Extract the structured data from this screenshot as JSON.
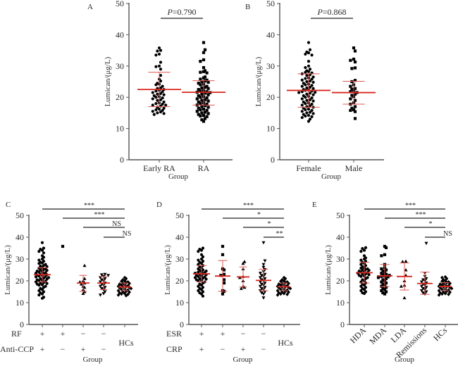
{
  "chart_data": [
    {
      "panel": "A",
      "type": "scatter",
      "title": "",
      "xlabel": "Group",
      "ylabel": "Lumican/(μg/L)",
      "ylim": [
        0,
        50
      ],
      "yticks": [
        0,
        10,
        20,
        30,
        40,
        50
      ],
      "categories": [
        "Early RA",
        "RA"
      ],
      "markers": [
        "circle",
        "square"
      ],
      "series": [
        {
          "name": "Early RA",
          "median": 22.5,
          "err_low": 17.0,
          "err_high": 28.0,
          "values": [
            35.8,
            35.0,
            34.8,
            33.8,
            33.5,
            31.2,
            30.0,
            29.8,
            29.0,
            27.0,
            25.8,
            25.2,
            24.5,
            24.2,
            24.0,
            23.5,
            23.0,
            22.8,
            22.5,
            22.2,
            22.0,
            21.8,
            21.5,
            21.2,
            21.0,
            20.8,
            20.5,
            20.2,
            20.0,
            19.8,
            19.5,
            19.2,
            19.0,
            18.5,
            18.2,
            18.0,
            17.8,
            17.5,
            17.5,
            17.2,
            16.8,
            16.5,
            16.2,
            16.0,
            15.8,
            15.5,
            15.3,
            15.0,
            14.8,
            14.5
          ]
        },
        {
          "name": "RA",
          "median": 21.6,
          "err_low": 17.5,
          "err_high": 25.3,
          "values": [
            37.5,
            35.2,
            34.3,
            32.0,
            31.5,
            29.5,
            28.5,
            28.2,
            28.0,
            27.8,
            26.5,
            26.2,
            25.8,
            25.5,
            25.2,
            25.0,
            24.8,
            24.5,
            24.2,
            24.0,
            23.5,
            23.2,
            23.0,
            22.8,
            22.5,
            22.2,
            22.0,
            21.8,
            21.6,
            21.5,
            21.3,
            21.0,
            20.8,
            20.5,
            20.2,
            20.0,
            19.8,
            19.5,
            19.2,
            19.0,
            18.8,
            18.5,
            18.2,
            18.0,
            17.8,
            17.5,
            17.3,
            17.0,
            16.8,
            16.5,
            16.2,
            16.0,
            15.8,
            15.5,
            15.2,
            15.0,
            14.8,
            14.5,
            14.2,
            14.0,
            13.8,
            13.2,
            12.8,
            12.3
          ]
        }
      ],
      "comparisons": [
        {
          "from": "Early RA",
          "to": "RA",
          "label_prefix": "P",
          "label_value": "=0.790"
        }
      ]
    },
    {
      "panel": "B",
      "type": "scatter",
      "title": "",
      "xlabel": "Group",
      "ylabel": "Lumican/(μg/L)",
      "ylim": [
        0,
        50
      ],
      "yticks": [
        0,
        10,
        20,
        30,
        40,
        50
      ],
      "categories": [
        "Female",
        "Male"
      ],
      "markers": [
        "circle",
        "square"
      ],
      "series": [
        {
          "name": "Female",
          "median": 22.2,
          "err_low": 16.8,
          "err_high": 27.5,
          "values": [
            37.5,
            35.2,
            34.5,
            34.2,
            33.8,
            33.5,
            31.5,
            30.0,
            29.5,
            29.0,
            28.5,
            28.2,
            28.0,
            27.8,
            27.5,
            27.2,
            27.0,
            26.5,
            26.2,
            26.0,
            25.8,
            25.5,
            25.2,
            25.0,
            24.8,
            24.5,
            24.2,
            24.0,
            23.8,
            23.5,
            23.2,
            23.0,
            22.8,
            22.5,
            22.3,
            22.2,
            22.0,
            21.8,
            21.6,
            21.5,
            21.3,
            21.0,
            20.8,
            20.5,
            20.3,
            20.0,
            19.8,
            19.5,
            19.2,
            19.0,
            18.8,
            18.5,
            18.2,
            18.0,
            17.8,
            17.5,
            17.3,
            17.0,
            16.8,
            16.5,
            16.2,
            16.0,
            15.8,
            15.5,
            15.2,
            15.0,
            14.8,
            14.5,
            14.2,
            14.0,
            13.8,
            13.5,
            13.0,
            12.3
          ]
        },
        {
          "name": "Male",
          "median": 21.5,
          "err_low": 17.8,
          "err_high": 25.1,
          "values": [
            35.8,
            34.8,
            32.2,
            31.8,
            31.3,
            29.4,
            29.2,
            25.4,
            25.0,
            24.0,
            23.5,
            22.8,
            22.6,
            22.2,
            21.8,
            21.5,
            21.0,
            20.6,
            20.2,
            19.5,
            19.0,
            18.2,
            17.8,
            17.0,
            16.5,
            16.0,
            15.8,
            15.4,
            13.2
          ]
        }
      ],
      "comparisons": [
        {
          "from": "Female",
          "to": "Male",
          "label_prefix": "P",
          "label_value": "=0.868"
        }
      ]
    },
    {
      "panel": "C",
      "type": "scatter",
      "title": "",
      "xlabel": "Group",
      "ylabel": "Lumican/(μg/L)",
      "ylim": [
        0,
        50
      ],
      "yticks": [
        0,
        10,
        20,
        30,
        40,
        50
      ],
      "row_labels": [
        "RF",
        "Anti-CCP"
      ],
      "categories": [
        {
          "rows": [
            "+",
            "+"
          ],
          "label": ""
        },
        {
          "rows": [
            "+",
            "−"
          ],
          "label": ""
        },
        {
          "rows": [
            "−",
            "+"
          ],
          "label": ""
        },
        {
          "rows": [
            "−",
            "−"
          ],
          "label": ""
        },
        {
          "rows": [
            "",
            ""
          ],
          "label": "HCs"
        }
      ],
      "markers": [
        "circle",
        "square",
        "triangle",
        "triangle-down",
        "diamond"
      ],
      "series": [
        {
          "name": "RF+ Anti-CCP+",
          "median": 22.8,
          "err_low": 19.5,
          "err_high": 26.0,
          "values": [
            37.5,
            35.0,
            34.5,
            34.0,
            33.5,
            32.8,
            31.5,
            30.8,
            30.0,
            29.5,
            29.0,
            28.5,
            28.2,
            28.0,
            27.5,
            27.0,
            26.8,
            26.5,
            26.0,
            25.8,
            25.5,
            25.2,
            25.0,
            24.8,
            24.5,
            24.2,
            24.0,
            23.8,
            23.5,
            23.2,
            23.0,
            22.8,
            22.6,
            22.4,
            22.2,
            22.0,
            21.8,
            21.5,
            21.2,
            21.0,
            20.8,
            20.5,
            20.2,
            20.0,
            19.8,
            19.5,
            19.2,
            19.0,
            18.8,
            18.5,
            18.2,
            18.0,
            17.5,
            17.0,
            16.5,
            16.0,
            15.5,
            15.0,
            14.5,
            14.0,
            13.5,
            12.5,
            12.0
          ]
        },
        {
          "name": "RF+ Anti-CCP−",
          "median": null,
          "err_low": null,
          "err_high": null,
          "values": [
            35.8
          ]
        },
        {
          "name": "RF− Anti-CCP+",
          "median": 19.0,
          "err_low": 15.2,
          "err_high": 22.5,
          "values": [
            27.0,
            21.0,
            20.0,
            19.5,
            19.0,
            18.5,
            17.5,
            17.0,
            16.0,
            15.0,
            14.2
          ]
        },
        {
          "name": "RF− Anti-CCP−",
          "median": 19.0,
          "err_low": 16.0,
          "err_high": 22.0,
          "values": [
            23.0,
            22.8,
            22.5,
            22.0,
            21.5,
            21.0,
            20.5,
            20.0,
            19.5,
            19.0,
            18.5,
            18.0,
            17.5,
            17.0,
            16.5,
            16.0,
            15.0,
            14.2,
            13.5
          ]
        },
        {
          "name": "HCs",
          "median": 17.2,
          "err_low": 15.5,
          "err_high": 19.0,
          "values": [
            21.5,
            21.0,
            20.5,
            20.0,
            19.8,
            19.5,
            19.2,
            19.0,
            18.8,
            18.5,
            18.2,
            18.0,
            17.8,
            17.5,
            17.3,
            17.2,
            17.0,
            16.8,
            16.5,
            16.2,
            16.0,
            15.8,
            15.5,
            15.2,
            15.0,
            14.8,
            14.5,
            14.2,
            14.0,
            13.8,
            13.5,
            13.2
          ]
        }
      ],
      "comparisons": [
        {
          "from": 0,
          "to": 4,
          "label": "***"
        },
        {
          "from": 1,
          "to": 4,
          "label": "***"
        },
        {
          "from": 2,
          "to": 4,
          "label": "NS"
        },
        {
          "from": 3,
          "to": 4,
          "label": "NS"
        }
      ]
    },
    {
      "panel": "D",
      "type": "scatter",
      "title": "",
      "xlabel": "Group",
      "ylabel": "Lumican/(μg/L)",
      "ylim": [
        0,
        50
      ],
      "yticks": [
        0,
        10,
        20,
        30,
        40,
        50
      ],
      "row_labels": [
        "ESR",
        "CRP"
      ],
      "categories": [
        {
          "rows": [
            "+",
            "+"
          ],
          "label": ""
        },
        {
          "rows": [
            "+",
            "−"
          ],
          "label": ""
        },
        {
          "rows": [
            "−",
            "+"
          ],
          "label": ""
        },
        {
          "rows": [
            "−",
            "−"
          ],
          "label": ""
        },
        {
          "rows": [
            "",
            ""
          ],
          "label": "HCs"
        }
      ],
      "markers": [
        "circle",
        "square",
        "triangle",
        "triangle-down",
        "diamond"
      ],
      "series": [
        {
          "name": "ESR+ CRP+",
          "median": 23.2,
          "err_low": 19.5,
          "err_high": 27.0,
          "values": [
            35.0,
            34.5,
            34.0,
            33.5,
            32.0,
            31.0,
            30.0,
            29.5,
            29.0,
            28.5,
            28.0,
            27.5,
            27.0,
            26.5,
            26.0,
            25.5,
            25.0,
            24.8,
            24.5,
            24.2,
            24.0,
            23.8,
            23.5,
            23.2,
            23.0,
            22.8,
            22.5,
            22.2,
            22.0,
            21.8,
            21.5,
            21.2,
            21.0,
            20.8,
            20.5,
            20.2,
            20.0,
            19.5,
            19.0,
            18.5,
            18.0,
            17.5,
            17.0,
            16.5,
            16.0,
            15.5,
            15.0,
            14.5,
            14.0,
            13.0
          ]
        },
        {
          "name": "ESR+ CRP−",
          "median": 22.2,
          "err_low": 15.2,
          "err_high": 29.3,
          "values": [
            35.8,
            32.0,
            25.5,
            25.0,
            23.0,
            22.5,
            20.5,
            19.0,
            15.5,
            15.2,
            14.0
          ]
        },
        {
          "name": "ESR− CRP+",
          "median": 21.8,
          "err_low": 17.2,
          "err_high": 26.4,
          "values": [
            28.8,
            28.0,
            25.5,
            22.0,
            21.5,
            20.0,
            17.5,
            17.0,
            16.5
          ]
        },
        {
          "name": "ESR− CRP−",
          "median": 20.2,
          "err_low": 15.5,
          "err_high": 25.3,
          "values": [
            37.5,
            29.2,
            27.5,
            26.2,
            25.2,
            24.2,
            23.5,
            23.0,
            22.5,
            22.0,
            21.5,
            21.0,
            20.5,
            20.0,
            19.5,
            19.0,
            18.5,
            18.0,
            17.5,
            17.0,
            16.5,
            16.0,
            15.5,
            15.0,
            14.5,
            14.0,
            12.2
          ]
        },
        {
          "name": "HCs",
          "median": 17.3,
          "err_low": 15.5,
          "err_high": 19.0,
          "values": [
            21.5,
            21.0,
            20.5,
            20.0,
            19.8,
            19.5,
            19.2,
            19.0,
            18.8,
            18.5,
            18.2,
            18.0,
            17.8,
            17.5,
            17.3,
            17.2,
            17.0,
            16.8,
            16.5,
            16.2,
            16.0,
            15.8,
            15.5,
            15.2,
            15.0,
            14.8,
            14.5,
            14.2,
            14.0,
            13.8,
            13.5
          ]
        }
      ],
      "comparisons": [
        {
          "from": 0,
          "to": 4,
          "label": "***"
        },
        {
          "from": 1,
          "to": 4,
          "label": "*"
        },
        {
          "from": 2,
          "to": 4,
          "label": "*"
        },
        {
          "from": 3,
          "to": 4,
          "label": "**"
        }
      ]
    },
    {
      "panel": "E",
      "type": "scatter",
      "title": "",
      "xlabel": "Group",
      "ylabel": "Lumican/(μg/L)",
      "ylim": [
        0,
        50
      ],
      "yticks": [
        0,
        10,
        20,
        30,
        40,
        50
      ],
      "categories": [
        "HDA",
        "MDA",
        "LDA",
        "Remissions",
        "HCs"
      ],
      "markers": [
        "circle",
        "square",
        "triangle",
        "triangle-down",
        "diamond"
      ],
      "series": [
        {
          "name": "HDA",
          "median": 23.7,
          "err_low": 19.0,
          "err_high": 28.5,
          "values": [
            35.2,
            34.8,
            34.0,
            33.5,
            31.5,
            30.5,
            30.0,
            29.5,
            29.0,
            28.5,
            28.0,
            27.5,
            27.0,
            26.5,
            26.0,
            25.8,
            25.5,
            25.2,
            25.0,
            24.8,
            24.5,
            24.2,
            24.0,
            23.8,
            23.5,
            23.2,
            23.0,
            22.8,
            22.5,
            22.2,
            22.0,
            21.5,
            21.0,
            20.5,
            20.0,
            19.5,
            19.0,
            18.5,
            18.0,
            17.5,
            17.0,
            16.5,
            16.0,
            15.5,
            15.0,
            14.5,
            14.2
          ]
        },
        {
          "name": "MDA",
          "median": 22.3,
          "err_low": 17.3,
          "err_high": 27.5,
          "values": [
            35.8,
            35.2,
            32.0,
            31.5,
            27.5,
            26.0,
            25.5,
            25.0,
            24.5,
            24.0,
            23.5,
            23.0,
            22.8,
            22.5,
            22.2,
            22.0,
            21.8,
            21.5,
            21.0,
            20.5,
            20.0,
            19.5,
            19.0,
            18.5,
            18.0,
            17.5,
            17.0,
            16.5,
            16.0,
            15.5,
            15.0,
            14.5,
            14.0
          ]
        },
        {
          "name": "LDA",
          "median": 22.0,
          "err_low": 15.8,
          "err_high": 28.2,
          "values": [
            29.0,
            28.8,
            25.0,
            22.5,
            20.0,
            18.0,
            17.5,
            12.2
          ]
        },
        {
          "name": "Remissions",
          "median": 18.8,
          "err_low": 13.8,
          "err_high": 24.0,
          "values": [
            37.2,
            23.5,
            22.0,
            21.0,
            20.5,
            20.0,
            19.5,
            19.0,
            18.5,
            18.0,
            17.5,
            17.0,
            16.5,
            16.0,
            15.5,
            15.0,
            14.5,
            14.0
          ]
        },
        {
          "name": "HCs",
          "median": 17.4,
          "err_low": 15.5,
          "err_high": 19.2,
          "values": [
            21.8,
            21.5,
            21.0,
            20.5,
            20.0,
            19.8,
            19.5,
            19.2,
            19.0,
            18.8,
            18.5,
            18.2,
            18.0,
            17.8,
            17.5,
            17.3,
            17.2,
            17.0,
            16.8,
            16.5,
            16.2,
            16.0,
            15.8,
            15.5,
            15.2,
            15.0,
            14.8,
            14.5,
            14.2,
            14.0,
            13.8,
            13.5
          ]
        }
      ],
      "comparisons": [
        {
          "from": 0,
          "to": 4,
          "label": "***"
        },
        {
          "from": 1,
          "to": 4,
          "label": "***"
        },
        {
          "from": 2,
          "to": 4,
          "label": "*"
        },
        {
          "from": 3,
          "to": 4,
          "label": "NS"
        }
      ]
    }
  ]
}
